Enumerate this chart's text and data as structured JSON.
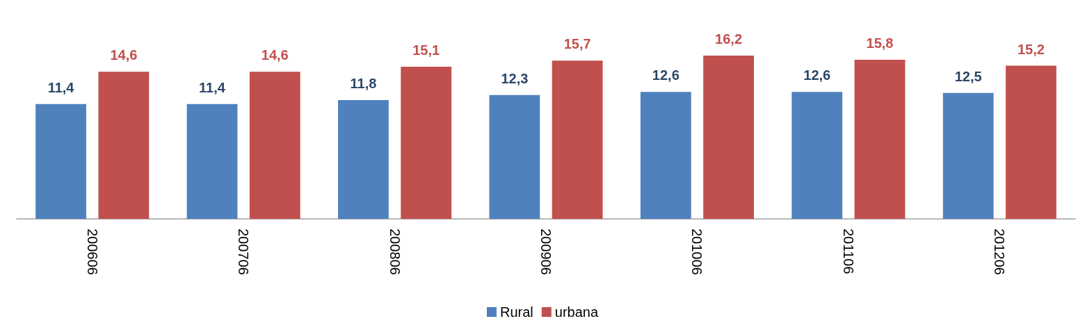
{
  "chart_data": {
    "type": "bar",
    "categories": [
      "200606",
      "200706",
      "200806",
      "200906",
      "201006",
      "201106",
      "201206"
    ],
    "series": [
      {
        "name": "Rural",
        "color": "#4f81bd",
        "values": [
          11.4,
          11.4,
          11.8,
          12.3,
          12.6,
          12.6,
          12.5
        ],
        "value_labels": [
          "11,4",
          "11,4",
          "11,8",
          "12,3",
          "12,6",
          "12,6",
          "12,5"
        ]
      },
      {
        "name": "urbana",
        "color": "#c0504d",
        "values": [
          14.6,
          14.6,
          15.1,
          15.7,
          16.2,
          15.8,
          15.2
        ],
        "value_labels": [
          "14,6",
          "14,6",
          "15,1",
          "15,7",
          "16,2",
          "15,8",
          "15,2"
        ]
      }
    ],
    "grid": false,
    "legend": "bottom"
  }
}
